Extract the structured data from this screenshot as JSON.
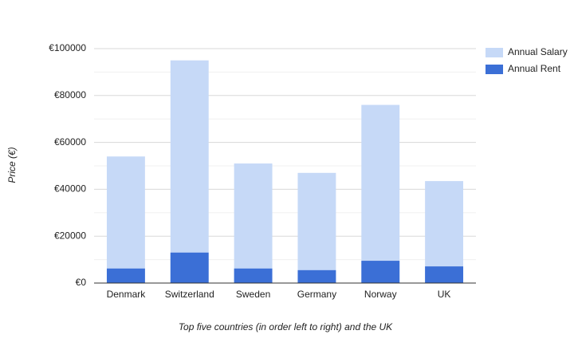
{
  "chart_data": {
    "type": "bar",
    "xlabel": "Top five countries (in order left to right) and the UK",
    "ylabel": "Price (€)",
    "categories": [
      "Denmark",
      "Switzerland",
      "Sweden",
      "Germany",
      "Norway",
      "UK"
    ],
    "series": [
      {
        "name": "Annual Salary",
        "color": "#c6d9f7",
        "values": [
          54000,
          95000,
          51000,
          47000,
          76000,
          43500
        ]
      },
      {
        "name": "Annual Rent",
        "color": "#3b6fd6",
        "values": [
          6200,
          13000,
          6200,
          5500,
          9500,
          7100
        ]
      }
    ],
    "ylim": [
      0,
      100000
    ],
    "yticks": [
      {
        "value": 0,
        "label": "€0"
      },
      {
        "value": 20000,
        "label": "€20000"
      },
      {
        "value": 40000,
        "label": "€40000"
      },
      {
        "value": 60000,
        "label": "€60000"
      },
      {
        "value": 80000,
        "label": "€80000"
      },
      {
        "value": 100000,
        "label": "€100000"
      }
    ],
    "minor_yticks": [
      10000,
      30000,
      50000,
      70000,
      90000
    ],
    "grid": true,
    "legend": "right"
  }
}
